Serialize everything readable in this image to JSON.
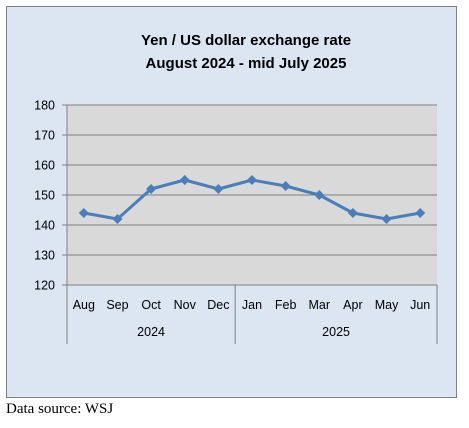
{
  "chart_data": {
    "type": "line",
    "title_lines": [
      "Yen / US dollar exchange rate",
      "August 2024 - mid July 2025"
    ],
    "categories": [
      "Aug",
      "Sep",
      "Oct",
      "Nov",
      "Dec",
      "Jan",
      "Feb",
      "Mar",
      "Apr",
      "May",
      "Jun"
    ],
    "groups": [
      {
        "label": "2024",
        "categories": [
          "Aug",
          "Sep",
          "Oct",
          "Nov",
          "Dec"
        ]
      },
      {
        "label": "2025",
        "categories": [
          "Jan",
          "Feb",
          "Mar",
          "Apr",
          "May",
          "Jun"
        ]
      }
    ],
    "series": [
      {
        "values": [
          144,
          142,
          152,
          155,
          152,
          155,
          153,
          150,
          144,
          142,
          144
        ],
        "color": "#4a7ebb"
      }
    ],
    "ylim": [
      120,
      180
    ],
    "yticks": [
      120,
      130,
      140,
      150,
      160,
      170,
      180
    ],
    "grid": true,
    "plot_background": "#d9d9d9",
    "chart_background": "#dce6f2"
  },
  "source_note": "Data source: WSJ"
}
